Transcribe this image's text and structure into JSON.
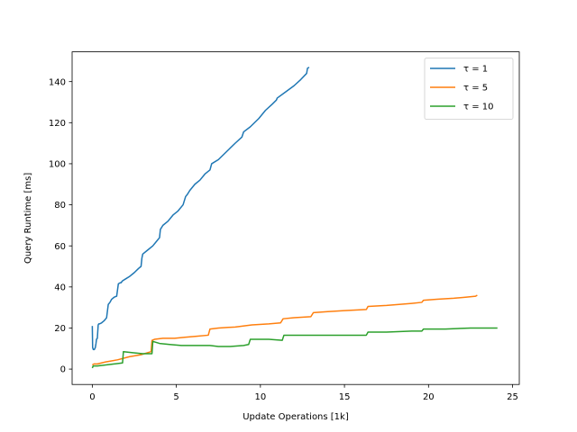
{
  "chart_data": {
    "type": "line",
    "xlabel": "Update Operations [1k]",
    "ylabel": "Query Runtime [ms]",
    "xlim": [
      -1.2,
      25.4
    ],
    "ylim": [
      -7.5,
      154.5
    ],
    "xticks": [
      0,
      5,
      10,
      15,
      20,
      25
    ],
    "yticks": [
      0,
      20,
      40,
      60,
      80,
      100,
      120,
      140
    ],
    "grid": false,
    "legend_position": "top-right",
    "series": [
      {
        "name": "τ = 1",
        "color": "#1f77b4",
        "x": [
          0.0,
          0.02,
          0.06,
          0.12,
          0.18,
          0.22,
          0.25,
          0.3,
          0.35,
          0.38,
          0.42,
          0.55,
          0.7,
          0.85,
          0.95,
          1.05,
          1.15,
          1.3,
          1.45,
          1.55,
          1.65,
          1.7,
          1.8,
          2.0,
          2.2,
          2.5,
          2.75,
          2.9,
          2.95,
          3.0,
          3.3,
          3.6,
          3.8,
          4.0,
          4.05,
          4.2,
          4.5,
          4.8,
          5.1,
          5.4,
          5.55,
          5.65,
          5.8,
          6.1,
          6.4,
          6.7,
          7.0,
          7.1,
          7.5,
          8.0,
          8.5,
          8.9,
          9.0,
          9.4,
          9.9,
          10.3,
          10.7,
          10.95,
          11.0,
          11.5,
          12.0,
          12.4,
          12.75,
          12.8,
          12.9
        ],
        "y": [
          21,
          10.5,
          9.5,
          9.5,
          10.5,
          12.5,
          14.5,
          15,
          21.5,
          22,
          22,
          22.5,
          23.5,
          25,
          31.5,
          32.5,
          34,
          35,
          35.5,
          41.5,
          42,
          42,
          43,
          44,
          45,
          47,
          49,
          50,
          54,
          56,
          58,
          60,
          62,
          64,
          68,
          70,
          72,
          75,
          77,
          80,
          84,
          85,
          87,
          90,
          92,
          95,
          97,
          100,
          102,
          106,
          110,
          113,
          115.5,
          118,
          122,
          126,
          129,
          131,
          132,
          135,
          138,
          141,
          144,
          146.5,
          147
        ]
      },
      {
        "name": "τ = 5",
        "color": "#ff7f0e",
        "x": [
          0.0,
          0.1,
          0.3,
          0.8,
          1.5,
          2.2,
          2.9,
          3.3,
          3.5,
          3.55,
          3.7,
          4.2,
          4.9,
          5.5,
          6.2,
          6.9,
          7.0,
          7.5,
          8.5,
          9.5,
          10.5,
          11.2,
          11.35,
          12.0,
          13.0,
          13.15,
          14.0,
          15.0,
          16.3,
          16.4,
          17.5,
          19.0,
          19.6,
          19.7,
          20.5,
          21.5,
          22.2,
          22.8,
          22.9
        ],
        "y": [
          2,
          2.5,
          2.5,
          3.5,
          4.5,
          6,
          7,
          8,
          8.5,
          14,
          14.5,
          15,
          15,
          15.5,
          16,
          16.5,
          19.5,
          20,
          20.5,
          21.5,
          22,
          22.5,
          24.5,
          25,
          25.5,
          27.5,
          28,
          28.5,
          29,
          30.5,
          31,
          32,
          32.5,
          33.5,
          34,
          34.5,
          35,
          35.5,
          36
        ]
      },
      {
        "name": "τ = 10",
        "color": "#2ca02c",
        "x": [
          0.0,
          0.05,
          0.3,
          0.8,
          1.3,
          1.8,
          1.85,
          2.4,
          3.0,
          3.55,
          3.6,
          4.0,
          4.6,
          5.3,
          5.6,
          6.5,
          7.0,
          7.5,
          8.2,
          9.0,
          9.3,
          9.4,
          10.5,
          11.3,
          11.4,
          12.5,
          14.0,
          15.5,
          16.3,
          16.4,
          17.5,
          19.0,
          19.6,
          19.7,
          21.0,
          22.5,
          24.1
        ],
        "y": [
          0.5,
          1.5,
          1.5,
          2,
          2.5,
          3,
          8.5,
          8,
          7.5,
          7.5,
          13.5,
          12.5,
          12,
          11.5,
          11.5,
          11.5,
          11.5,
          11,
          11,
          11.5,
          12,
          14.5,
          14.5,
          14,
          16.5,
          16.5,
          16.5,
          16.5,
          16.5,
          18,
          18,
          18.5,
          18.5,
          19.5,
          19.5,
          20,
          20
        ]
      }
    ]
  }
}
